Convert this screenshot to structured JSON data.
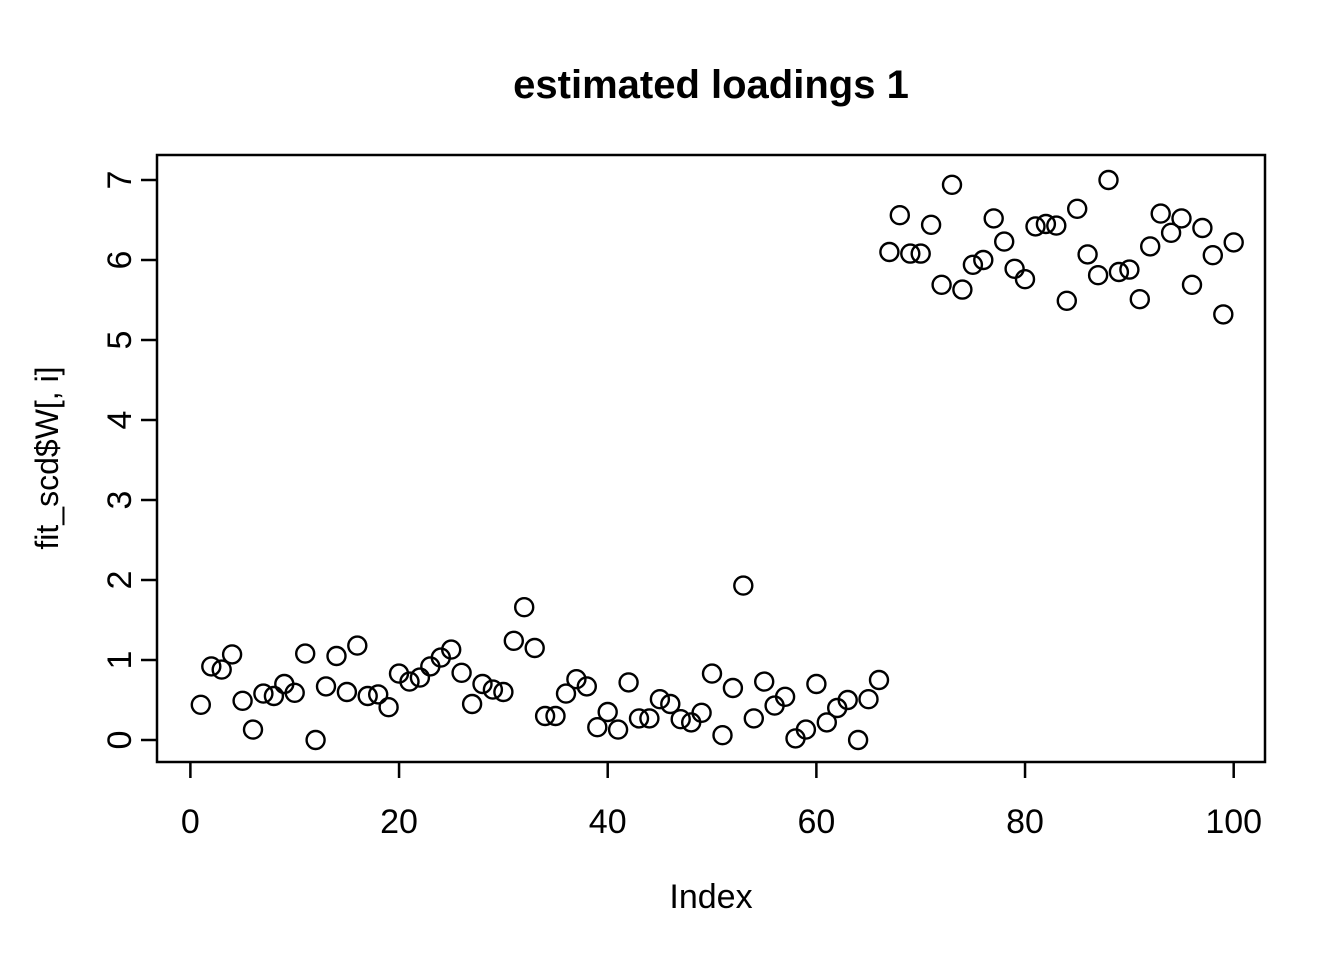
{
  "figure": {
    "title": "estimated loadings 1",
    "xlabel": "Index",
    "ylabel": "fit_scd$W[, i]"
  },
  "chart_data": {
    "type": "scatter",
    "title": "estimated loadings 1",
    "xlabel": "Index",
    "ylabel": "fit_scd$W[, i]",
    "point_symbol": "open-circle",
    "point_color": "#000000",
    "background_color": "#ffffff",
    "grid": false,
    "legend": false,
    "x_ticks": [
      0,
      20,
      40,
      60,
      80,
      100
    ],
    "y_ticks": [
      0,
      1,
      2,
      3,
      4,
      5,
      6,
      7
    ],
    "xlim": [
      -3.2,
      103.0
    ],
    "ylim": [
      -0.275,
      7.3125
    ],
    "x": [
      1,
      2,
      3,
      4,
      5,
      6,
      7,
      8,
      9,
      10,
      11,
      12,
      13,
      14,
      15,
      16,
      17,
      18,
      19,
      20,
      21,
      22,
      23,
      24,
      25,
      26,
      27,
      28,
      29,
      30,
      31,
      32,
      33,
      34,
      35,
      36,
      37,
      38,
      39,
      40,
      41,
      42,
      43,
      44,
      45,
      46,
      47,
      48,
      49,
      50,
      51,
      52,
      53,
      54,
      55,
      56,
      57,
      58,
      59,
      60,
      61,
      62,
      63,
      64,
      65,
      66,
      67,
      68,
      69,
      70,
      71,
      72,
      73,
      74,
      75,
      76,
      77,
      78,
      79,
      80,
      81,
      82,
      83,
      84,
      85,
      86,
      87,
      88,
      89,
      90,
      91,
      92,
      93,
      94,
      95,
      96,
      97,
      98,
      99,
      100
    ],
    "y": [
      0.44,
      0.92,
      0.88,
      1.07,
      0.49,
      0.13,
      0.58,
      0.55,
      0.7,
      0.59,
      1.08,
      0.0,
      0.67,
      1.05,
      0.6,
      1.18,
      0.55,
      0.57,
      0.41,
      0.83,
      0.73,
      0.78,
      0.92,
      1.03,
      1.13,
      0.84,
      0.45,
      0.7,
      0.63,
      0.6,
      1.24,
      1.66,
      1.15,
      0.3,
      0.3,
      0.58,
      0.76,
      0.67,
      0.16,
      0.35,
      0.13,
      0.72,
      0.27,
      0.27,
      0.51,
      0.45,
      0.26,
      0.22,
      0.34,
      0.83,
      0.06,
      0.65,
      1.93,
      0.27,
      0.73,
      0.43,
      0.54,
      0.02,
      0.13,
      0.7,
      0.22,
      0.4,
      0.5,
      0.0,
      0.51,
      0.75,
      6.1,
      6.56,
      6.08,
      6.08,
      6.44,
      5.69,
      6.94,
      5.63,
      5.94,
      6.0,
      6.52,
      6.23,
      5.89,
      5.76,
      6.42,
      6.45,
      6.43,
      5.49,
      6.64,
      6.07,
      5.81,
      7.0,
      5.85,
      5.88,
      5.51,
      6.17,
      6.58,
      6.34,
      6.52,
      5.69,
      6.4,
      6.06,
      5.32,
      6.22
    ]
  }
}
